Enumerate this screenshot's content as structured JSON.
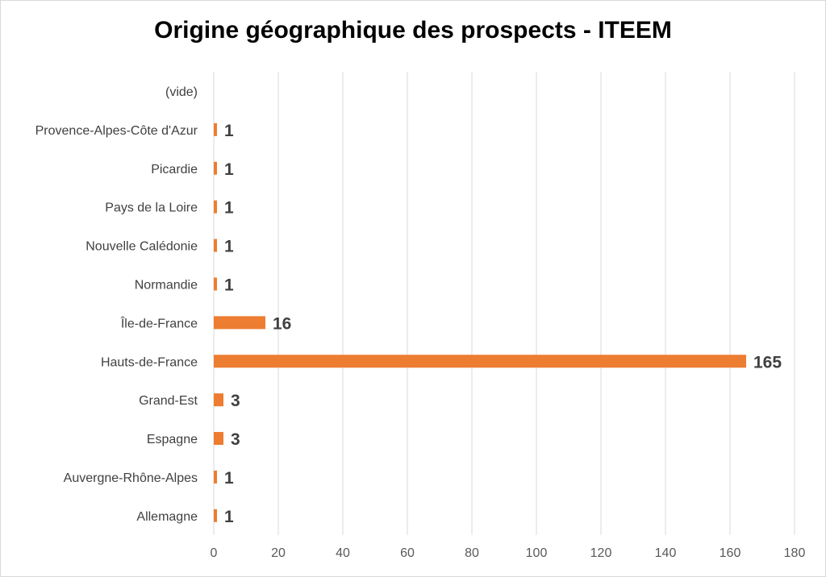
{
  "chart_data": {
    "type": "bar",
    "orientation": "horizontal",
    "title": "Origine géographique des prospects - ITEEM",
    "xlabel": "",
    "ylabel": "",
    "categories": [
      "(vide)",
      "Provence-Alpes-Côte d'Azur",
      "Picardie",
      "Pays de la Loire",
      "Nouvelle Calédonie",
      "Normandie",
      "Île-de-France",
      "Hauts-de-France",
      "Grand-Est",
      "Espagne",
      "Auvergne-Rhône-Alpes",
      "Allemagne"
    ],
    "values": [
      null,
      1,
      1,
      1,
      1,
      1,
      16,
      165,
      3,
      3,
      1,
      1
    ],
    "data_labels": [
      "",
      "1",
      "1",
      "1",
      "1",
      "1",
      "16",
      "165",
      "3",
      "3",
      "1",
      "1"
    ],
    "xlim": [
      0,
      180
    ],
    "xticks": [
      "0",
      "20",
      "40",
      "60",
      "80",
      "100",
      "120",
      "140",
      "160",
      "180"
    ],
    "grid": true,
    "legend": "none",
    "bar_color": "#ED7D31"
  }
}
